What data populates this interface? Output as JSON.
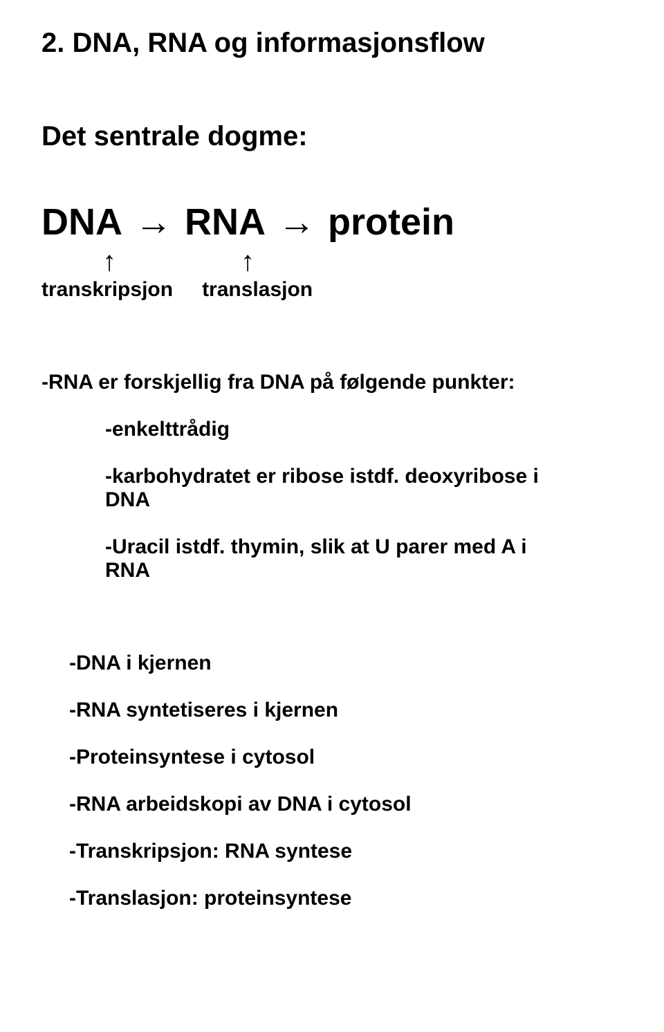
{
  "title": "2. DNA, RNA og informasjonsflow",
  "subtitle": "Det sentrale dogme:",
  "dogme": {
    "dna": "DNA",
    "arrow": "→",
    "rna": "RNA",
    "protein": "protein",
    "uparrow": "↑",
    "transkripsjon": "transkripsjon",
    "translasjon": "translasjon"
  },
  "diff_intro": "-RNA er forskjellig fra DNA på følgende punkter:",
  "diff_items": [
    "-enkelttrådig",
    "-karbohydratet er ribose istdf. deoxyribose i DNA",
    "-Uracil istdf. thymin, slik at U parer med A i RNA"
  ],
  "loc_items": [
    "-DNA i kjernen",
    "-RNA syntetiseres i kjernen",
    "-Proteinsyntese i cytosol",
    "-RNA arbeidskopi av DNA i cytosol",
    "-Transkripsjon: RNA syntese",
    "-Translasjon: proteinsyntese"
  ]
}
